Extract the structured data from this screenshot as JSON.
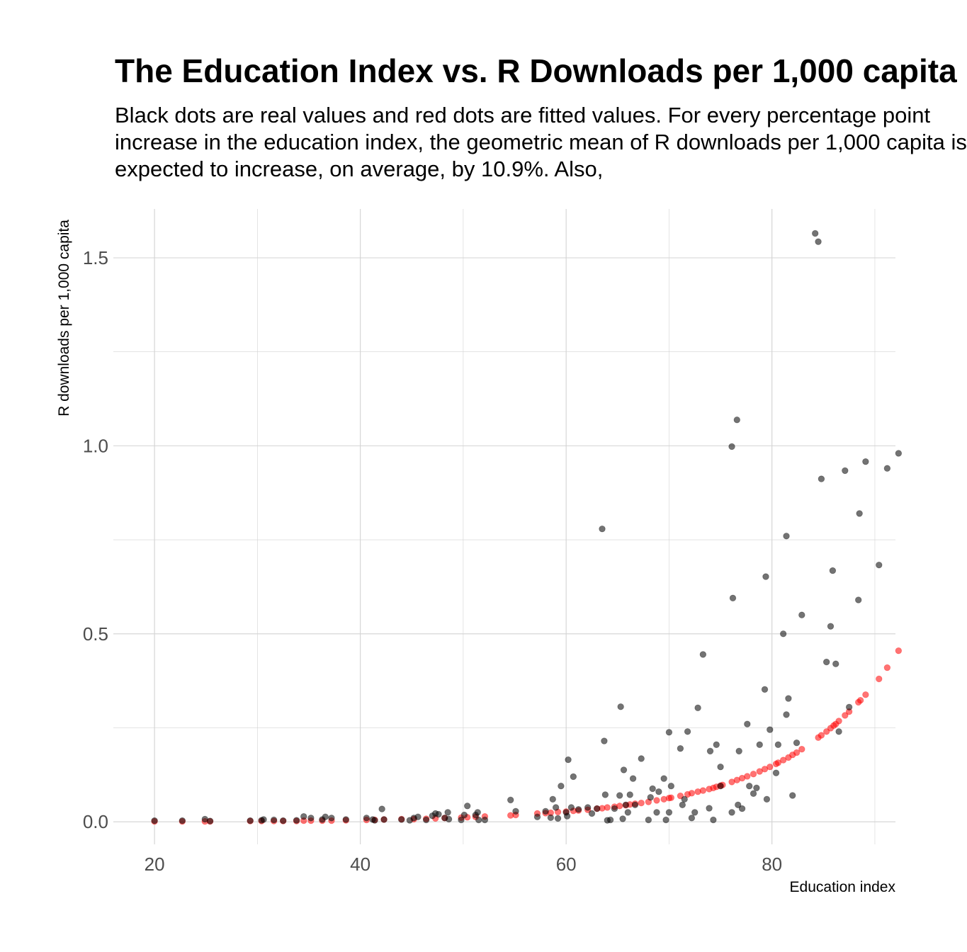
{
  "chart_data": {
    "type": "scatter",
    "title": "The Education Index vs. R Downloads per 1,000 capita",
    "subtitle_lines": [
      "Black dots are real values and red dots are fitted values. For every percentage point",
      "increase in the education index, the geometric mean of R downloads per 1,000 capita is",
      "expected to increase, on average, by 10.9%. Also,"
    ],
    "xlabel": "Education index",
    "ylabel": "R downloads per 1,000 capita",
    "xlim": [
      16,
      92
    ],
    "ylim": [
      -0.06,
      1.63
    ],
    "x_ticks": [
      20,
      40,
      60,
      80
    ],
    "x_tick_labels": [
      "20",
      "40",
      "60",
      "80"
    ],
    "y_ticks": [
      0,
      0.5,
      1,
      1.5
    ],
    "y_tick_labels": [
      "0.0",
      "0.5",
      "1.0",
      "1.5"
    ],
    "grid": true,
    "colors": {
      "real": "#000000",
      "fitted": "#ff0000",
      "grid": "#d3d3d3"
    },
    "series": [
      {
        "key": "real",
        "points": [
          [
            20,
            0.003
          ],
          [
            22.7,
            0.003
          ],
          [
            24.9,
            0.007
          ],
          [
            25.4,
            0.002
          ],
          [
            29.3,
            0.003
          ],
          [
            30.4,
            0.004
          ],
          [
            30.6,
            0.006
          ],
          [
            31.6,
            0.005
          ],
          [
            32.5,
            0.003
          ],
          [
            33.8,
            0.004
          ],
          [
            34.5,
            0.014
          ],
          [
            35.2,
            0.01
          ],
          [
            36.3,
            0.006
          ],
          [
            36.6,
            0.013
          ],
          [
            37.2,
            0.01
          ],
          [
            38.6,
            0.006
          ],
          [
            40.6,
            0.01
          ],
          [
            41.2,
            0.006
          ],
          [
            41.4,
            0.004
          ],
          [
            42.1,
            0.034
          ],
          [
            42.3,
            0.006
          ],
          [
            44.0,
            0.006
          ],
          [
            44.8,
            0.004
          ],
          [
            45.2,
            0.01
          ],
          [
            45.6,
            0.013
          ],
          [
            46.4,
            0.005
          ],
          [
            47.0,
            0.016
          ],
          [
            47.3,
            0.022
          ],
          [
            47.6,
            0.02
          ],
          [
            48.2,
            0.01
          ],
          [
            48.5,
            0.025
          ],
          [
            48.6,
            0.007
          ],
          [
            49.8,
            0.005
          ],
          [
            50.1,
            0.018
          ],
          [
            50.4,
            0.042
          ],
          [
            51.2,
            0.018
          ],
          [
            51.4,
            0.025
          ],
          [
            51.5,
            0.005
          ],
          [
            52.1,
            0.005
          ],
          [
            54.6,
            0.058
          ],
          [
            55.1,
            0.028
          ],
          [
            57.2,
            0.013
          ],
          [
            58.0,
            0.028
          ],
          [
            58.5,
            0.011
          ],
          [
            58.7,
            0.06
          ],
          [
            59.0,
            0.038
          ],
          [
            59.2,
            0.009
          ],
          [
            59.5,
            0.095
          ],
          [
            60.0,
            0.025
          ],
          [
            60.1,
            0.015
          ],
          [
            60.2,
            0.165
          ],
          [
            60.5,
            0.038
          ],
          [
            60.7,
            0.12
          ],
          [
            61.2,
            0.033
          ],
          [
            62.1,
            0.038
          ],
          [
            62.5,
            0.022
          ],
          [
            63.0,
            0.035
          ],
          [
            63.5,
            0.779
          ],
          [
            63.7,
            0.215
          ],
          [
            63.8,
            0.072
          ],
          [
            64.0,
            0.004
          ],
          [
            64.3,
            0.005
          ],
          [
            64.7,
            0.035
          ],
          [
            65.2,
            0.07
          ],
          [
            65.3,
            0.306
          ],
          [
            65.5,
            0.008
          ],
          [
            65.6,
            0.138
          ],
          [
            65.8,
            0.045
          ],
          [
            66.0,
            0.025
          ],
          [
            66.2,
            0.072
          ],
          [
            66.5,
            0.115
          ],
          [
            66.7,
            0.045
          ],
          [
            67.3,
            0.168
          ],
          [
            68.0,
            0.005
          ],
          [
            68.2,
            0.065
          ],
          [
            68.4,
            0.088
          ],
          [
            68.8,
            0.025
          ],
          [
            69.0,
            0.08
          ],
          [
            69.5,
            0.115
          ],
          [
            69.7,
            0.005
          ],
          [
            70.0,
            0.025
          ],
          [
            70.0,
            0.238
          ],
          [
            70.2,
            0.095
          ],
          [
            71.1,
            0.195
          ],
          [
            71.3,
            0.045
          ],
          [
            71.5,
            0.06
          ],
          [
            71.8,
            0.24
          ],
          [
            72.2,
            0.01
          ],
          [
            72.5,
            0.025
          ],
          [
            72.8,
            0.303
          ],
          [
            73.3,
            0.445
          ],
          [
            73.9,
            0.036
          ],
          [
            74.0,
            0.188
          ],
          [
            74.3,
            0.005
          ],
          [
            74.6,
            0.205
          ],
          [
            75.0,
            0.095
          ],
          [
            75.0,
            0.146
          ],
          [
            76.1,
            0.025
          ],
          [
            76.2,
            0.595
          ],
          [
            76.1,
            0.998
          ],
          [
            76.6,
            1.069
          ],
          [
            76.7,
            0.045
          ],
          [
            76.8,
            0.188
          ],
          [
            77.1,
            0.035
          ],
          [
            77.6,
            0.26
          ],
          [
            77.8,
            0.095
          ],
          [
            78.2,
            0.075
          ],
          [
            78.5,
            0.09
          ],
          [
            78.8,
            0.205
          ],
          [
            79.3,
            0.352
          ],
          [
            79.4,
            0.652
          ],
          [
            79.5,
            0.06
          ],
          [
            79.8,
            0.245
          ],
          [
            80.4,
            0.13
          ],
          [
            80.6,
            0.205
          ],
          [
            81.1,
            0.5
          ],
          [
            81.4,
            0.285
          ],
          [
            81.4,
            0.76
          ],
          [
            81.6,
            0.328
          ],
          [
            82.0,
            0.07
          ],
          [
            82.4,
            0.21
          ],
          [
            82.9,
            0.55
          ],
          [
            84.2,
            1.565
          ],
          [
            84.5,
            1.543
          ],
          [
            84.8,
            0.912
          ],
          [
            85.3,
            0.425
          ],
          [
            85.7,
            0.52
          ],
          [
            85.9,
            0.668
          ],
          [
            86.2,
            0.42
          ],
          [
            86.5,
            0.24
          ],
          [
            87.1,
            0.934
          ],
          [
            87.5,
            0.305
          ],
          [
            88.4,
            0.59
          ],
          [
            88.5,
            0.82
          ],
          [
            89.1,
            0.958
          ],
          [
            90.4,
            0.683
          ],
          [
            91.2,
            0.94
          ],
          [
            92.3,
            0.98
          ]
        ]
      },
      {
        "key": "fitted",
        "points": [
          [
            20,
            0.001
          ],
          [
            22.7,
            0.001
          ],
          [
            24.9,
            0.001
          ],
          [
            25.4,
            0.001
          ],
          [
            29.3,
            0.002
          ],
          [
            30.4,
            0.002
          ],
          [
            31.6,
            0.002
          ],
          [
            32.5,
            0.002
          ],
          [
            33.8,
            0.002
          ],
          [
            34.5,
            0.003
          ],
          [
            35.2,
            0.003
          ],
          [
            36.3,
            0.003
          ],
          [
            37.2,
            0.003
          ],
          [
            38.6,
            0.004
          ],
          [
            40.6,
            0.005
          ],
          [
            41.4,
            0.005
          ],
          [
            42.3,
            0.006
          ],
          [
            44.0,
            0.007
          ],
          [
            45.2,
            0.007
          ],
          [
            46.4,
            0.008
          ],
          [
            47.3,
            0.009
          ],
          [
            48.2,
            0.01
          ],
          [
            49.8,
            0.011
          ],
          [
            50.4,
            0.012
          ],
          [
            51.2,
            0.013
          ],
          [
            52.1,
            0.014
          ],
          [
            54.6,
            0.017
          ],
          [
            55.1,
            0.018
          ],
          [
            57.2,
            0.022
          ],
          [
            58.0,
            0.023
          ],
          [
            58.5,
            0.024
          ],
          [
            59.2,
            0.026
          ],
          [
            60.0,
            0.027
          ],
          [
            60.7,
            0.029
          ],
          [
            61.2,
            0.03
          ],
          [
            62.1,
            0.032
          ],
          [
            63.0,
            0.035
          ],
          [
            63.5,
            0.036
          ],
          [
            64.0,
            0.038
          ],
          [
            64.7,
            0.04
          ],
          [
            65.2,
            0.042
          ],
          [
            65.8,
            0.044
          ],
          [
            66.2,
            0.046
          ],
          [
            66.7,
            0.048
          ],
          [
            67.3,
            0.05
          ],
          [
            68.0,
            0.053
          ],
          [
            68.8,
            0.057
          ],
          [
            69.5,
            0.06
          ],
          [
            70.0,
            0.063
          ],
          [
            70.2,
            0.064
          ],
          [
            71.1,
            0.069
          ],
          [
            71.8,
            0.073
          ],
          [
            72.2,
            0.076
          ],
          [
            72.8,
            0.08
          ],
          [
            73.3,
            0.083
          ],
          [
            73.9,
            0.087
          ],
          [
            74.3,
            0.09
          ],
          [
            74.6,
            0.093
          ],
          [
            75.0,
            0.096
          ],
          [
            75.2,
            0.098
          ],
          [
            76.1,
            0.106
          ],
          [
            76.6,
            0.111
          ],
          [
            77.1,
            0.116
          ],
          [
            77.6,
            0.121
          ],
          [
            78.2,
            0.127
          ],
          [
            78.8,
            0.134
          ],
          [
            79.3,
            0.14
          ],
          [
            79.8,
            0.146
          ],
          [
            80.4,
            0.154
          ],
          [
            80.6,
            0.157
          ],
          [
            81.1,
            0.164
          ],
          [
            81.6,
            0.171
          ],
          [
            82.0,
            0.178
          ],
          [
            82.4,
            0.184
          ],
          [
            82.9,
            0.193
          ],
          [
            84.5,
            0.224
          ],
          [
            84.8,
            0.23
          ],
          [
            85.3,
            0.24
          ],
          [
            85.7,
            0.249
          ],
          [
            86.0,
            0.256
          ],
          [
            86.2,
            0.26
          ],
          [
            86.5,
            0.268
          ],
          [
            87.1,
            0.283
          ],
          [
            87.5,
            0.293
          ],
          [
            88.4,
            0.318
          ],
          [
            88.6,
            0.323
          ],
          [
            89.1,
            0.338
          ],
          [
            90.4,
            0.38
          ],
          [
            91.2,
            0.41
          ],
          [
            92.3,
            0.455
          ]
        ]
      }
    ]
  }
}
